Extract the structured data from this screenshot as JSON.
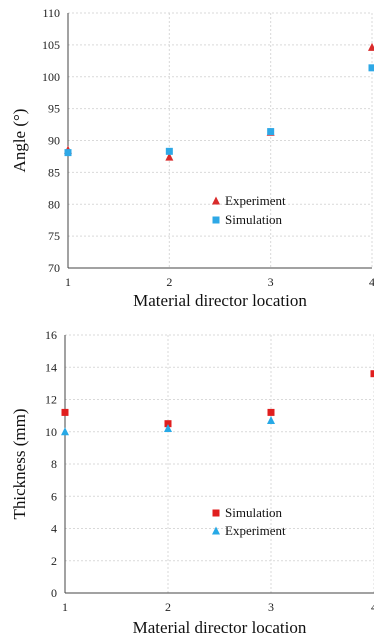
{
  "chart_data": [
    {
      "type": "scatter",
      "xlabel": "Material director location",
      "ylabel": "Angle (°)",
      "x_ticks": [
        "1",
        "2",
        "3",
        "4"
      ],
      "y_ticks": [
        "70",
        "75",
        "80",
        "85",
        "90",
        "95",
        "100",
        "105",
        "110"
      ],
      "xlim": [
        1,
        4
      ],
      "ylim": [
        70,
        110
      ],
      "grid": true,
      "legend_position": "center",
      "series": [
        {
          "name": "Experiment",
          "marker": "triangle",
          "color": "#d92b2b",
          "x": [
            1,
            2,
            3,
            4
          ],
          "y": [
            88.5,
            87.4,
            91.3,
            104.6
          ]
        },
        {
          "name": "Simulation",
          "marker": "square",
          "color": "#2ea8e6",
          "x": [
            1,
            2,
            3,
            4
          ],
          "y": [
            88.1,
            88.3,
            91.4,
            101.4
          ]
        }
      ]
    },
    {
      "type": "scatter",
      "xlabel": "Material director location",
      "ylabel": "Thickness (mm)",
      "x_ticks": [
        "1",
        "2",
        "3",
        "4"
      ],
      "y_ticks": [
        "0",
        "2",
        "4",
        "6",
        "8",
        "10",
        "12",
        "14",
        "16"
      ],
      "xlim": [
        1,
        4
      ],
      "ylim": [
        0,
        16
      ],
      "grid": true,
      "legend_position": "center",
      "series": [
        {
          "name": "Simulation",
          "marker": "square",
          "color": "#e01e1e",
          "x": [
            1,
            2,
            3,
            4
          ],
          "y": [
            11.2,
            10.5,
            11.2,
            13.6
          ]
        },
        {
          "name": "Experiment",
          "marker": "triangle",
          "color": "#27a9e6",
          "x": [
            1,
            2,
            3
          ],
          "y": [
            10.0,
            10.2,
            10.7
          ]
        }
      ]
    }
  ]
}
